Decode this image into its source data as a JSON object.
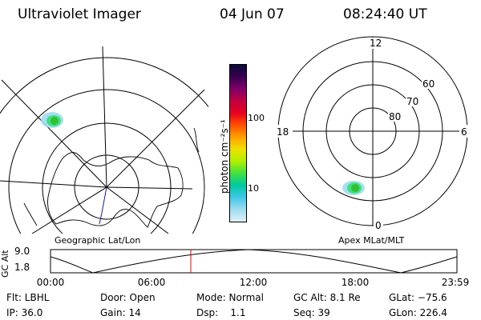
{
  "header": {
    "title": "Ultraviolet Imager",
    "date": "04 Jun 07",
    "time": "08:24:40 UT"
  },
  "colorbar": {
    "label": "photon cm⁻²s⁻¹",
    "ticks": [
      "100",
      "10"
    ],
    "colors": [
      "#0a0a3a",
      "#3a0050",
      "#80006a",
      "#c00040",
      "#e80020",
      "#ff5000",
      "#ffa000",
      "#f0e000",
      "#b0f000",
      "#40e040",
      "#00c8a0",
      "#40c8e8",
      "#a0dcf0",
      "#e0f0f8"
    ]
  },
  "left_map": {
    "caption": "Geographic Lat/Lon"
  },
  "right_map": {
    "caption": "Apex MLat/MLT",
    "mlt_labels": {
      "top": "12",
      "left": "18",
      "right": "6",
      "bottom": "0"
    },
    "lat_labels": [
      "60",
      "70",
      "80"
    ]
  },
  "altitude_plot": {
    "ylabel": "GC Alt",
    "yticks": [
      "9.0",
      "1.8"
    ],
    "xticks": [
      "00:00",
      "06:00",
      "12:00",
      "18:00",
      "23:59"
    ],
    "current_time_marker_color": "#e00000"
  },
  "footer": {
    "row1": [
      "Flt: LBHL",
      "Door: Open",
      "Mode: Normal",
      "GC Alt: 8.1 Re",
      "GLat: −75.6"
    ],
    "row2": [
      "IP: 36.0",
      "Gain: 14",
      "Dsp:    1.1",
      "Seq: 39",
      "GLon: 226.4"
    ]
  }
}
